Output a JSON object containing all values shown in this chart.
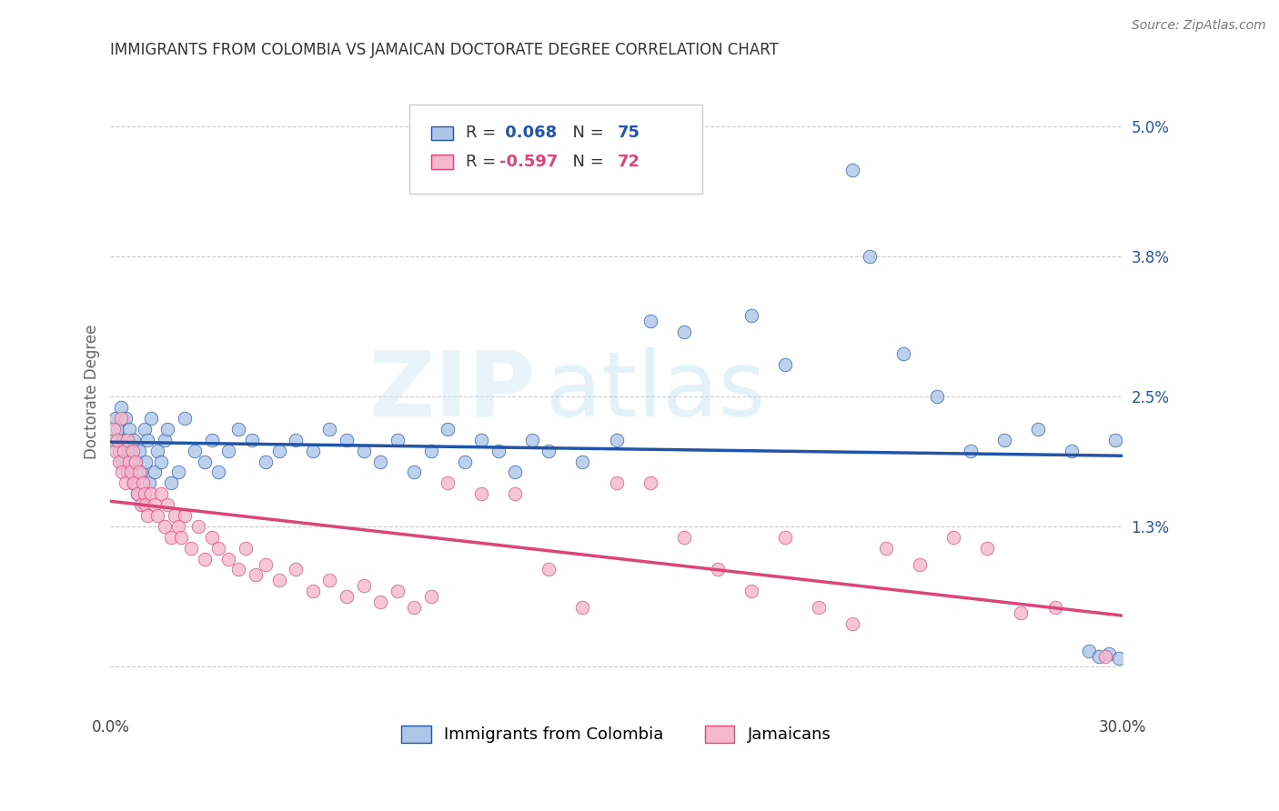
{
  "title": "IMMIGRANTS FROM COLOMBIA VS JAMAICAN DOCTORATE DEGREE CORRELATION CHART",
  "source": "Source: ZipAtlas.com",
  "ylabel": "Doctorate Degree",
  "xlim": [
    0.0,
    30.0
  ],
  "ylim": [
    -0.4,
    5.5
  ],
  "colombia_R": 0.068,
  "colombia_N": 75,
  "jamaica_R": -0.597,
  "jamaica_N": 72,
  "colombia_color": "#aec6e8",
  "jamaica_color": "#f5b8cc",
  "colombia_line_color": "#2255aa",
  "jamaica_line_color": "#dd4477",
  "legend_label_colombia": "Immigrants from Colombia",
  "legend_label_jamaica": "Jamaicans",
  "watermark_zip": "ZIP",
  "watermark_atlas": "atlas",
  "background_color": "#ffffff",
  "colombia_x": [
    0.1,
    0.15,
    0.2,
    0.25,
    0.3,
    0.35,
    0.4,
    0.45,
    0.5,
    0.55,
    0.6,
    0.65,
    0.7,
    0.75,
    0.8,
    0.85,
    0.9,
    0.95,
    1.0,
    1.05,
    1.1,
    1.15,
    1.2,
    1.3,
    1.4,
    1.5,
    1.6,
    1.7,
    1.8,
    2.0,
    2.2,
    2.5,
    2.8,
    3.0,
    3.2,
    3.5,
    3.8,
    4.2,
    4.6,
    5.0,
    5.5,
    6.0,
    6.5,
    7.0,
    7.5,
    8.0,
    8.5,
    9.0,
    9.5,
    10.0,
    10.5,
    11.0,
    11.5,
    12.0,
    12.5,
    13.0,
    14.0,
    15.0,
    16.0,
    17.0,
    19.0,
    20.0,
    22.0,
    22.5,
    23.5,
    24.5,
    25.5,
    26.5,
    27.5,
    28.5,
    29.0,
    29.3,
    29.6,
    29.8,
    29.9
  ],
  "colombia_y": [
    2.1,
    2.3,
    2.2,
    2.0,
    2.4,
    1.9,
    2.1,
    2.3,
    1.8,
    2.2,
    2.0,
    1.7,
    2.1,
    1.9,
    1.6,
    2.0,
    1.8,
    1.5,
    2.2,
    1.9,
    2.1,
    1.7,
    2.3,
    1.8,
    2.0,
    1.9,
    2.1,
    2.2,
    1.7,
    1.8,
    2.3,
    2.0,
    1.9,
    2.1,
    1.8,
    2.0,
    2.2,
    2.1,
    1.9,
    2.0,
    2.1,
    2.0,
    2.2,
    2.1,
    2.0,
    1.9,
    2.1,
    1.8,
    2.0,
    2.2,
    1.9,
    2.1,
    2.0,
    1.8,
    2.1,
    2.0,
    1.9,
    2.1,
    3.2,
    3.1,
    3.25,
    2.8,
    4.6,
    3.8,
    2.9,
    2.5,
    2.0,
    2.1,
    2.2,
    2.0,
    0.15,
    0.1,
    0.12,
    2.1,
    0.08
  ],
  "jamaica_x": [
    0.1,
    0.15,
    0.2,
    0.25,
    0.3,
    0.35,
    0.4,
    0.45,
    0.5,
    0.55,
    0.6,
    0.65,
    0.7,
    0.75,
    0.8,
    0.85,
    0.9,
    0.95,
    1.0,
    1.05,
    1.1,
    1.2,
    1.3,
    1.4,
    1.5,
    1.6,
    1.7,
    1.8,
    1.9,
    2.0,
    2.1,
    2.2,
    2.4,
    2.6,
    2.8,
    3.0,
    3.2,
    3.5,
    3.8,
    4.0,
    4.3,
    4.6,
    5.0,
    5.5,
    6.0,
    6.5,
    7.0,
    7.5,
    8.0,
    8.5,
    9.0,
    9.5,
    10.0,
    11.0,
    12.0,
    13.0,
    14.0,
    15.0,
    16.0,
    17.0,
    18.0,
    19.0,
    20.0,
    21.0,
    22.0,
    23.0,
    24.0,
    25.0,
    26.0,
    27.0,
    28.0,
    29.5
  ],
  "jamaica_y": [
    2.2,
    2.0,
    2.1,
    1.9,
    2.3,
    1.8,
    2.0,
    1.7,
    2.1,
    1.9,
    1.8,
    2.0,
    1.7,
    1.9,
    1.6,
    1.8,
    1.5,
    1.7,
    1.6,
    1.5,
    1.4,
    1.6,
    1.5,
    1.4,
    1.6,
    1.3,
    1.5,
    1.2,
    1.4,
    1.3,
    1.2,
    1.4,
    1.1,
    1.3,
    1.0,
    1.2,
    1.1,
    1.0,
    0.9,
    1.1,
    0.85,
    0.95,
    0.8,
    0.9,
    0.7,
    0.8,
    0.65,
    0.75,
    0.6,
    0.7,
    0.55,
    0.65,
    1.7,
    1.6,
    1.6,
    0.9,
    0.55,
    1.7,
    1.7,
    1.2,
    0.9,
    0.7,
    1.2,
    0.55,
    0.4,
    1.1,
    0.95,
    1.2,
    1.1,
    0.5,
    0.55,
    0.1
  ]
}
